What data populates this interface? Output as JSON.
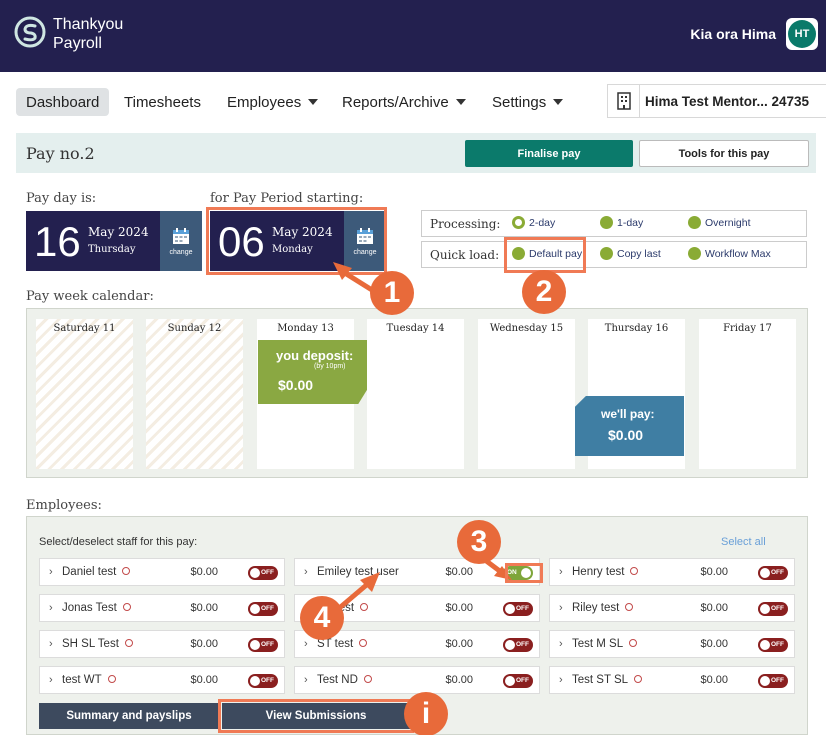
{
  "header": {
    "logo_line1": "Thankyou",
    "logo_line2": "Payroll",
    "greeting": "Kia ora Hima",
    "avatar_initials": "HT"
  },
  "nav": {
    "dashboard": "Dashboard",
    "timesheets": "Timesheets",
    "employees": "Employees",
    "reports": "Reports/Archive",
    "settings": "Settings",
    "company": "Hima Test Mentor... 24735"
  },
  "pay": {
    "title": "Pay no.2",
    "finalise": "Finalise pay",
    "tools": "Tools for this pay"
  },
  "payday": {
    "label": "Pay day is:",
    "day": "16",
    "month": "May 2024",
    "weekday": "Thursday",
    "change": "change"
  },
  "period": {
    "label": "for Pay Period starting:",
    "day": "06",
    "month": "May 2024",
    "weekday": "Monday",
    "change": "change"
  },
  "processing": {
    "label": "Processing:",
    "options": [
      "2-day",
      "1-day",
      "Overnight"
    ],
    "selected": "2-day"
  },
  "quickload": {
    "label": "Quick load:",
    "options": [
      "Default pay",
      "Copy last",
      "Workflow Max"
    ]
  },
  "calendar": {
    "label": "Pay week calendar:",
    "days": [
      "Saturday 11",
      "Sunday 12",
      "Monday 13",
      "Tuesday 14",
      "Wednesday 15",
      "Thursday 16",
      "Friday 17"
    ],
    "deposit_title": "you deposit:",
    "deposit_sub": "(by 10pm)",
    "deposit_amount": "$0.00",
    "wepay_title": "we'll pay:",
    "wepay_amount": "$0.00"
  },
  "employees": {
    "label": "Employees:",
    "instruction": "Select/deselect staff for this pay:",
    "select_all": "Select all",
    "list": [
      {
        "name": "Daniel test",
        "amount": "$0.00",
        "toggle": "OFF"
      },
      {
        "name": "Emiley test user",
        "amount": "$0.00",
        "toggle": "ON"
      },
      {
        "name": "Henry test",
        "amount": "$0.00",
        "toggle": "OFF"
      },
      {
        "name": "Jonas Test",
        "amount": "$0.00",
        "toggle": "OFF"
      },
      {
        "name": "SS test",
        "amount": "$0.00",
        "toggle": "OFF"
      },
      {
        "name": "Riley test",
        "amount": "$0.00",
        "toggle": "OFF"
      },
      {
        "name": "SH SL Test",
        "amount": "$0.00",
        "toggle": "OFF"
      },
      {
        "name": "ST test",
        "amount": "$0.00",
        "toggle": "OFF"
      },
      {
        "name": "Test M SL",
        "amount": "$0.00",
        "toggle": "OFF"
      },
      {
        "name": "test WT",
        "amount": "$0.00",
        "toggle": "OFF"
      },
      {
        "name": "Test ND",
        "amount": "$0.00",
        "toggle": "OFF"
      },
      {
        "name": "Test ST SL",
        "amount": "$0.00",
        "toggle": "OFF"
      }
    ]
  },
  "buttons": {
    "summary": "Summary and payslips",
    "view": "View Submissions"
  },
  "annotations": {
    "b1": "1",
    "b2": "2",
    "b3": "3",
    "b4": "4",
    "bi": "i"
  },
  "colors": {
    "header": "#23204f",
    "accent": "#0b7a6b",
    "annotation": "#e86a3a"
  }
}
